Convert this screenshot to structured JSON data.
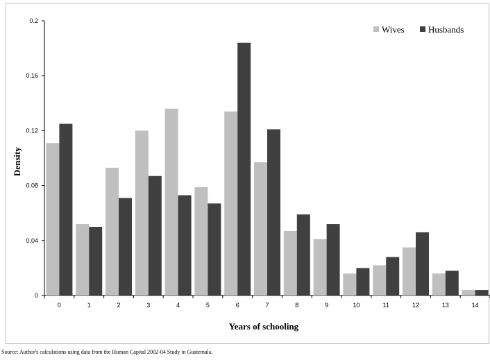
{
  "source_note": "Source: Author's calculations  using data from the Human Capital  2002-04 Study in Guatemala.",
  "chart_data": {
    "type": "bar",
    "title": "",
    "xlabel": "Years of schooling",
    "ylabel": "Density",
    "ylim": [
      0,
      0.2
    ],
    "yticks": [
      "0",
      "0.04",
      "0.08",
      "0.12",
      "0.16",
      "0.2"
    ],
    "categories": [
      "0",
      "1",
      "2",
      "3",
      "4",
      "5",
      "6",
      "7",
      "8",
      "9",
      "10",
      "11",
      "12",
      "13",
      "14"
    ],
    "legend_position": "top-right",
    "grid": false,
    "series": [
      {
        "name": "Wives",
        "color": "#bfbfbf",
        "values": [
          0.111,
          0.052,
          0.093,
          0.12,
          0.136,
          0.079,
          0.134,
          0.097,
          0.047,
          0.041,
          0.016,
          0.022,
          0.035,
          0.016,
          0.004
        ]
      },
      {
        "name": "Husbands",
        "color": "#404040",
        "values": [
          0.125,
          0.05,
          0.071,
          0.087,
          0.073,
          0.067,
          0.184,
          0.121,
          0.059,
          0.052,
          0.02,
          0.028,
          0.046,
          0.018,
          0.004
        ]
      }
    ]
  }
}
